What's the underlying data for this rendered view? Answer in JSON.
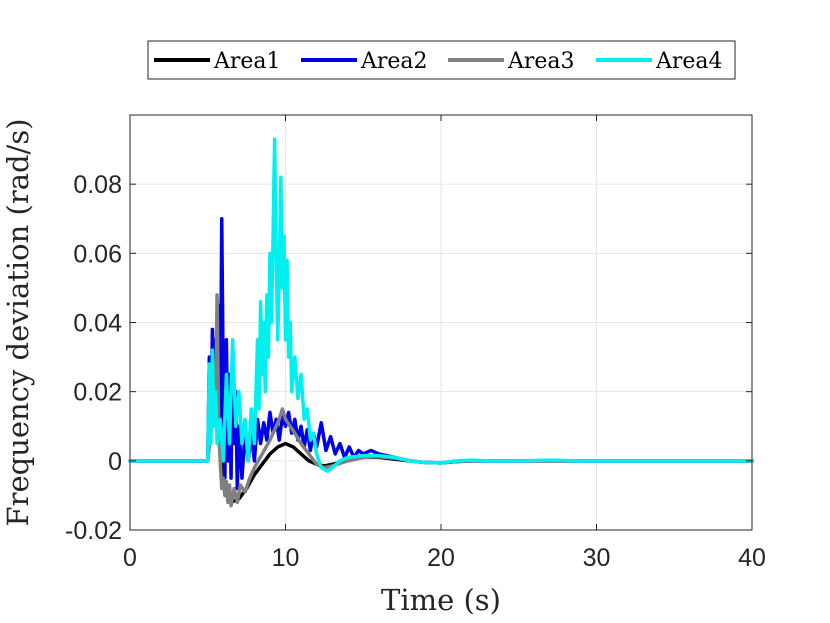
{
  "chart_data": {
    "type": "line",
    "title": "",
    "xlabel": "Time (s)",
    "ylabel": "Frequency deviation (rad/s)",
    "xlim": [
      0,
      40
    ],
    "ylim": [
      -0.02,
      0.1
    ],
    "xticks": [
      0,
      10,
      20,
      30,
      40
    ],
    "xtick_labels": [
      "0",
      "10",
      "20",
      "30",
      "40"
    ],
    "yticks": [
      -0.02,
      0,
      0.02,
      0.04,
      0.06,
      0.08
    ],
    "ytick_labels": [
      "-0.02",
      "0",
      "0.02",
      "0.04",
      "0.06",
      "0.08"
    ],
    "grid": true,
    "legend_position": "top-center, outside, horizontal",
    "series": [
      {
        "name": "Area1",
        "color": "#000000",
        "points": [
          [
            0,
            0
          ],
          [
            5,
            0
          ],
          [
            5.2,
            0.01
          ],
          [
            5.5,
            0.012
          ],
          [
            5.8,
            0.004
          ],
          [
            6,
            -0.005
          ],
          [
            6.2,
            -0.01
          ],
          [
            6.5,
            -0.012
          ],
          [
            7,
            -0.011
          ],
          [
            7.5,
            -0.008
          ],
          [
            8,
            -0.004
          ],
          [
            8.5,
            -0.001
          ],
          [
            9,
            0.002
          ],
          [
            9.5,
            0.004
          ],
          [
            10,
            0.005
          ],
          [
            10.5,
            0.004
          ],
          [
            11,
            0.002
          ],
          [
            11.5,
            0.0
          ],
          [
            12,
            -0.001
          ],
          [
            12.5,
            -0.0015
          ],
          [
            13,
            -0.001
          ],
          [
            14,
            0.0
          ],
          [
            15,
            0.001
          ],
          [
            16,
            0.001
          ],
          [
            17,
            0.0005
          ],
          [
            18,
            0.0
          ],
          [
            19,
            -0.0005
          ],
          [
            20,
            -0.0006
          ],
          [
            21,
            -0.0002
          ],
          [
            22,
            0.0
          ],
          [
            24,
            0.0
          ],
          [
            40,
            0.0
          ]
        ]
      },
      {
        "name": "Area2",
        "color": "#0000e6",
        "points": [
          [
            0,
            0
          ],
          [
            5,
            0
          ],
          [
            5.1,
            0.03
          ],
          [
            5.2,
            0.01
          ],
          [
            5.3,
            0.038
          ],
          [
            5.4,
            0.02
          ],
          [
            5.5,
            0.035
          ],
          [
            5.6,
            0.01
          ],
          [
            5.7,
            0.045
          ],
          [
            5.8,
            0.005
          ],
          [
            5.9,
            0.07
          ],
          [
            6.0,
            0.02
          ],
          [
            6.1,
            -0.005
          ],
          [
            6.2,
            0.035
          ],
          [
            6.3,
            0.0
          ],
          [
            6.4,
            0.025
          ],
          [
            6.5,
            -0.005
          ],
          [
            6.6,
            0.033
          ],
          [
            6.7,
            0.005
          ],
          [
            6.8,
            0.02
          ],
          [
            6.9,
            -0.008
          ],
          [
            7.0,
            0.01
          ],
          [
            7.2,
            -0.005
          ],
          [
            7.4,
            0.008
          ],
          [
            7.6,
            0.0
          ],
          [
            7.8,
            0.008
          ],
          [
            8.0,
            0.0
          ],
          [
            8.2,
            0.012
          ],
          [
            8.4,
            0.005
          ],
          [
            8.6,
            0.011
          ],
          [
            8.8,
            0.006
          ],
          [
            9.0,
            0.014
          ],
          [
            9.2,
            0.008
          ],
          [
            9.4,
            0.012
          ],
          [
            9.6,
            0.006
          ],
          [
            9.8,
            0.013
          ],
          [
            10.0,
            0.01
          ],
          [
            10.2,
            0.014
          ],
          [
            10.4,
            0.008
          ],
          [
            10.6,
            0.012
          ],
          [
            10.8,
            0.006
          ],
          [
            11.0,
            0.01
          ],
          [
            11.2,
            0.004
          ],
          [
            11.4,
            0.009
          ],
          [
            11.6,
            0.003
          ],
          [
            11.8,
            0.008
          ],
          [
            12.0,
            0.004
          ],
          [
            12.3,
            0.011
          ],
          [
            12.6,
            0.003
          ],
          [
            12.9,
            0.007
          ],
          [
            13.2,
            0.002
          ],
          [
            13.5,
            0.005
          ],
          [
            13.8,
            0.001
          ],
          [
            14.1,
            0.004
          ],
          [
            14.4,
            0.001
          ],
          [
            14.7,
            0.003
          ],
          [
            15.0,
            0.002
          ],
          [
            15.5,
            0.003
          ],
          [
            16,
            0.002
          ],
          [
            17,
            0.001
          ],
          [
            18,
            0.0
          ],
          [
            19,
            -0.0005
          ],
          [
            20,
            -0.0006
          ],
          [
            21,
            -0.0002
          ],
          [
            22,
            0.0
          ],
          [
            24,
            0.0
          ],
          [
            40,
            0.0
          ]
        ]
      },
      {
        "name": "Area3",
        "color": "#808080",
        "points": [
          [
            0,
            0
          ],
          [
            5,
            0
          ],
          [
            5.2,
            0.01
          ],
          [
            5.4,
            0.018
          ],
          [
            5.5,
            0.01
          ],
          [
            5.6,
            0.048
          ],
          [
            5.7,
            0.01
          ],
          [
            5.8,
            0.0
          ],
          [
            5.9,
            -0.008
          ],
          [
            6.0,
            -0.005
          ],
          [
            6.1,
            -0.01
          ],
          [
            6.2,
            -0.006
          ],
          [
            6.3,
            -0.012
          ],
          [
            6.4,
            -0.007
          ],
          [
            6.5,
            -0.013
          ],
          [
            6.7,
            -0.008
          ],
          [
            6.9,
            -0.012
          ],
          [
            7.1,
            -0.007
          ],
          [
            7.4,
            -0.009
          ],
          [
            7.7,
            -0.005
          ],
          [
            8,
            -0.002
          ],
          [
            8.5,
            0.002
          ],
          [
            9,
            0.006
          ],
          [
            9.3,
            0.009
          ],
          [
            9.6,
            0.012
          ],
          [
            9.8,
            0.015
          ],
          [
            10.0,
            0.012
          ],
          [
            10.3,
            0.01
          ],
          [
            10.6,
            0.008
          ],
          [
            11,
            0.005
          ],
          [
            11.5,
            0.002
          ],
          [
            12,
            -0.001
          ],
          [
            12.5,
            -0.002
          ],
          [
            13,
            -0.0015
          ],
          [
            14,
            0.0
          ],
          [
            15,
            0.001
          ],
          [
            16,
            0.0012
          ],
          [
            17,
            0.0008
          ],
          [
            18,
            0.0
          ],
          [
            19,
            -0.0005
          ],
          [
            20,
            -0.0006
          ],
          [
            21,
            -0.0002
          ],
          [
            22,
            0.0
          ],
          [
            24,
            0.0
          ],
          [
            40,
            0.0
          ]
        ]
      },
      {
        "name": "Area4",
        "color": "#00f0f0",
        "points": [
          [
            0,
            0
          ],
          [
            5,
            0
          ],
          [
            5.1,
            0.028
          ],
          [
            5.2,
            0.005
          ],
          [
            5.3,
            0.032
          ],
          [
            5.4,
            0.01
          ],
          [
            5.5,
            0.02
          ],
          [
            5.6,
            0.005
          ],
          [
            5.8,
            0.012
          ],
          [
            6.0,
            0.0
          ],
          [
            6.2,
            0.025
          ],
          [
            6.4,
            0.005
          ],
          [
            6.6,
            0.035
          ],
          [
            6.8,
            0.01
          ],
          [
            7.0,
            0.02
          ],
          [
            7.2,
            0.005
          ],
          [
            7.4,
            0.012
          ],
          [
            7.6,
            0.0
          ],
          [
            7.8,
            0.015
          ],
          [
            8.0,
            0.005
          ],
          [
            8.1,
            0.02
          ],
          [
            8.2,
            0.035
          ],
          [
            8.3,
            0.015
          ],
          [
            8.4,
            0.046
          ],
          [
            8.5,
            0.025
          ],
          [
            8.6,
            0.04
          ],
          [
            8.7,
            0.02
          ],
          [
            8.8,
            0.048
          ],
          [
            8.9,
            0.03
          ],
          [
            9.0,
            0.06
          ],
          [
            9.1,
            0.04
          ],
          [
            9.2,
            0.065
          ],
          [
            9.3,
            0.093
          ],
          [
            9.4,
            0.06
          ],
          [
            9.5,
            0.035
          ],
          [
            9.6,
            0.055
          ],
          [
            9.7,
            0.082
          ],
          [
            9.8,
            0.05
          ],
          [
            9.9,
            0.065
          ],
          [
            10.0,
            0.035
          ],
          [
            10.1,
            0.058
          ],
          [
            10.2,
            0.03
          ],
          [
            10.3,
            0.04
          ],
          [
            10.4,
            0.02
          ],
          [
            10.6,
            0.03
          ],
          [
            10.8,
            0.018
          ],
          [
            11.0,
            0.025
          ],
          [
            11.2,
            0.012
          ],
          [
            11.4,
            0.015
          ],
          [
            11.6,
            0.006
          ],
          [
            11.8,
            0.008
          ],
          [
            12.0,
            0.002
          ],
          [
            12.3,
            -0.002
          ],
          [
            12.7,
            -0.003
          ],
          [
            13,
            -0.002
          ],
          [
            13.5,
            0.0
          ],
          [
            14,
            0.001
          ],
          [
            15,
            0.0015
          ],
          [
            16,
            0.0015
          ],
          [
            17,
            0.001
          ],
          [
            18,
            0.0
          ],
          [
            19,
            -0.0005
          ],
          [
            20,
            -0.0006
          ],
          [
            21,
            0.0
          ],
          [
            22,
            0.0002
          ],
          [
            23,
            0.0
          ],
          [
            25,
            0.0
          ],
          [
            27,
            0.0002
          ],
          [
            29,
            0.0
          ],
          [
            40,
            0.0
          ]
        ]
      }
    ]
  }
}
